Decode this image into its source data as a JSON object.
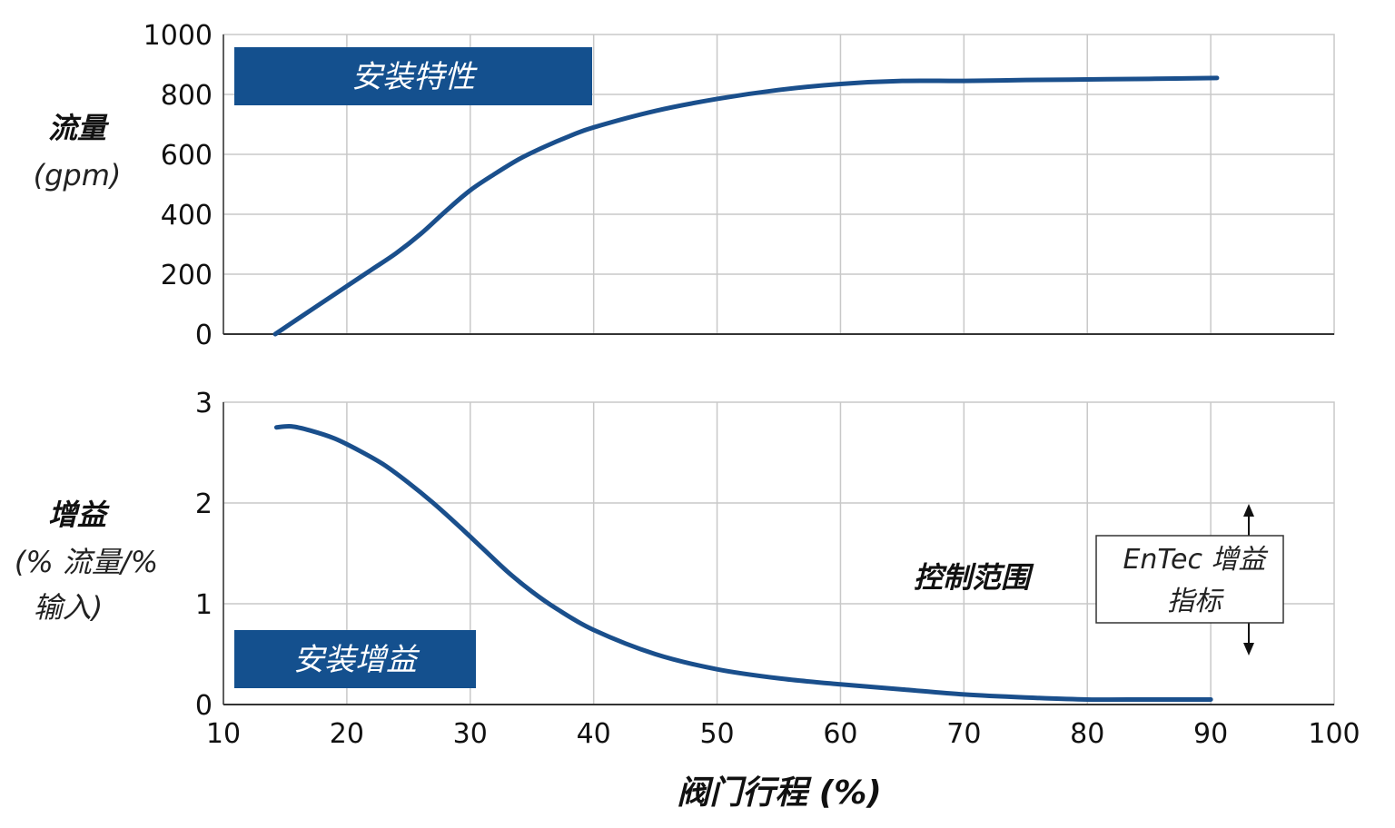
{
  "colors": {
    "curve": "#1a4f8c",
    "box": "#14508e",
    "grid": "#c8c8c8",
    "frame": "#333333"
  },
  "x_axis": {
    "label": "阀门行程 (%)",
    "ticks": [
      "10",
      "20",
      "30",
      "40",
      "50",
      "60",
      "70",
      "80",
      "90",
      "100"
    ]
  },
  "chart_data": [
    {
      "type": "line",
      "title": "",
      "ylabel": "流量",
      "ylabel_unit": "(gpm)",
      "xlim": [
        10,
        100
      ],
      "ylim": [
        0,
        1000
      ],
      "yticks": [
        "0",
        "200",
        "400",
        "600",
        "800",
        "1000"
      ],
      "grid": true,
      "box_label": "安装特性",
      "series": [
        {
          "x": [
            14.2,
            16,
            18,
            20,
            22,
            24,
            26,
            28,
            30,
            32,
            34,
            36,
            38,
            40,
            45,
            50,
            55,
            60,
            65,
            70,
            75,
            80,
            85,
            90.5
          ],
          "y": [
            0,
            50,
            105,
            160,
            215,
            270,
            335,
            410,
            480,
            535,
            585,
            625,
            660,
            690,
            745,
            785,
            815,
            835,
            845,
            845,
            848,
            850,
            852,
            855
          ]
        }
      ]
    },
    {
      "type": "line",
      "title": "",
      "ylabel": "增益",
      "ylabel_unit_lines": [
        "(% 流量/%",
        "输入)"
      ],
      "xlim": [
        10,
        100
      ],
      "ylim": [
        0,
        3
      ],
      "yticks": [
        "0",
        "1",
        "2",
        "3"
      ],
      "grid": true,
      "box_label": "安装增益",
      "annotation": "控制范围",
      "entec_label_lines": [
        "EnTec 增益",
        "指标"
      ],
      "series": [
        {
          "x": [
            14.3,
            15.5,
            17,
            19,
            21,
            23,
            25,
            27,
            29,
            31,
            33,
            35,
            37,
            40,
            45,
            50,
            55,
            60,
            65,
            70,
            75,
            80,
            85,
            90
          ],
          "y": [
            2.75,
            2.76,
            2.72,
            2.64,
            2.52,
            2.38,
            2.2,
            2.0,
            1.78,
            1.55,
            1.32,
            1.12,
            0.95,
            0.74,
            0.5,
            0.35,
            0.26,
            0.2,
            0.15,
            0.1,
            0.07,
            0.05,
            0.05,
            0.05
          ]
        }
      ]
    }
  ]
}
